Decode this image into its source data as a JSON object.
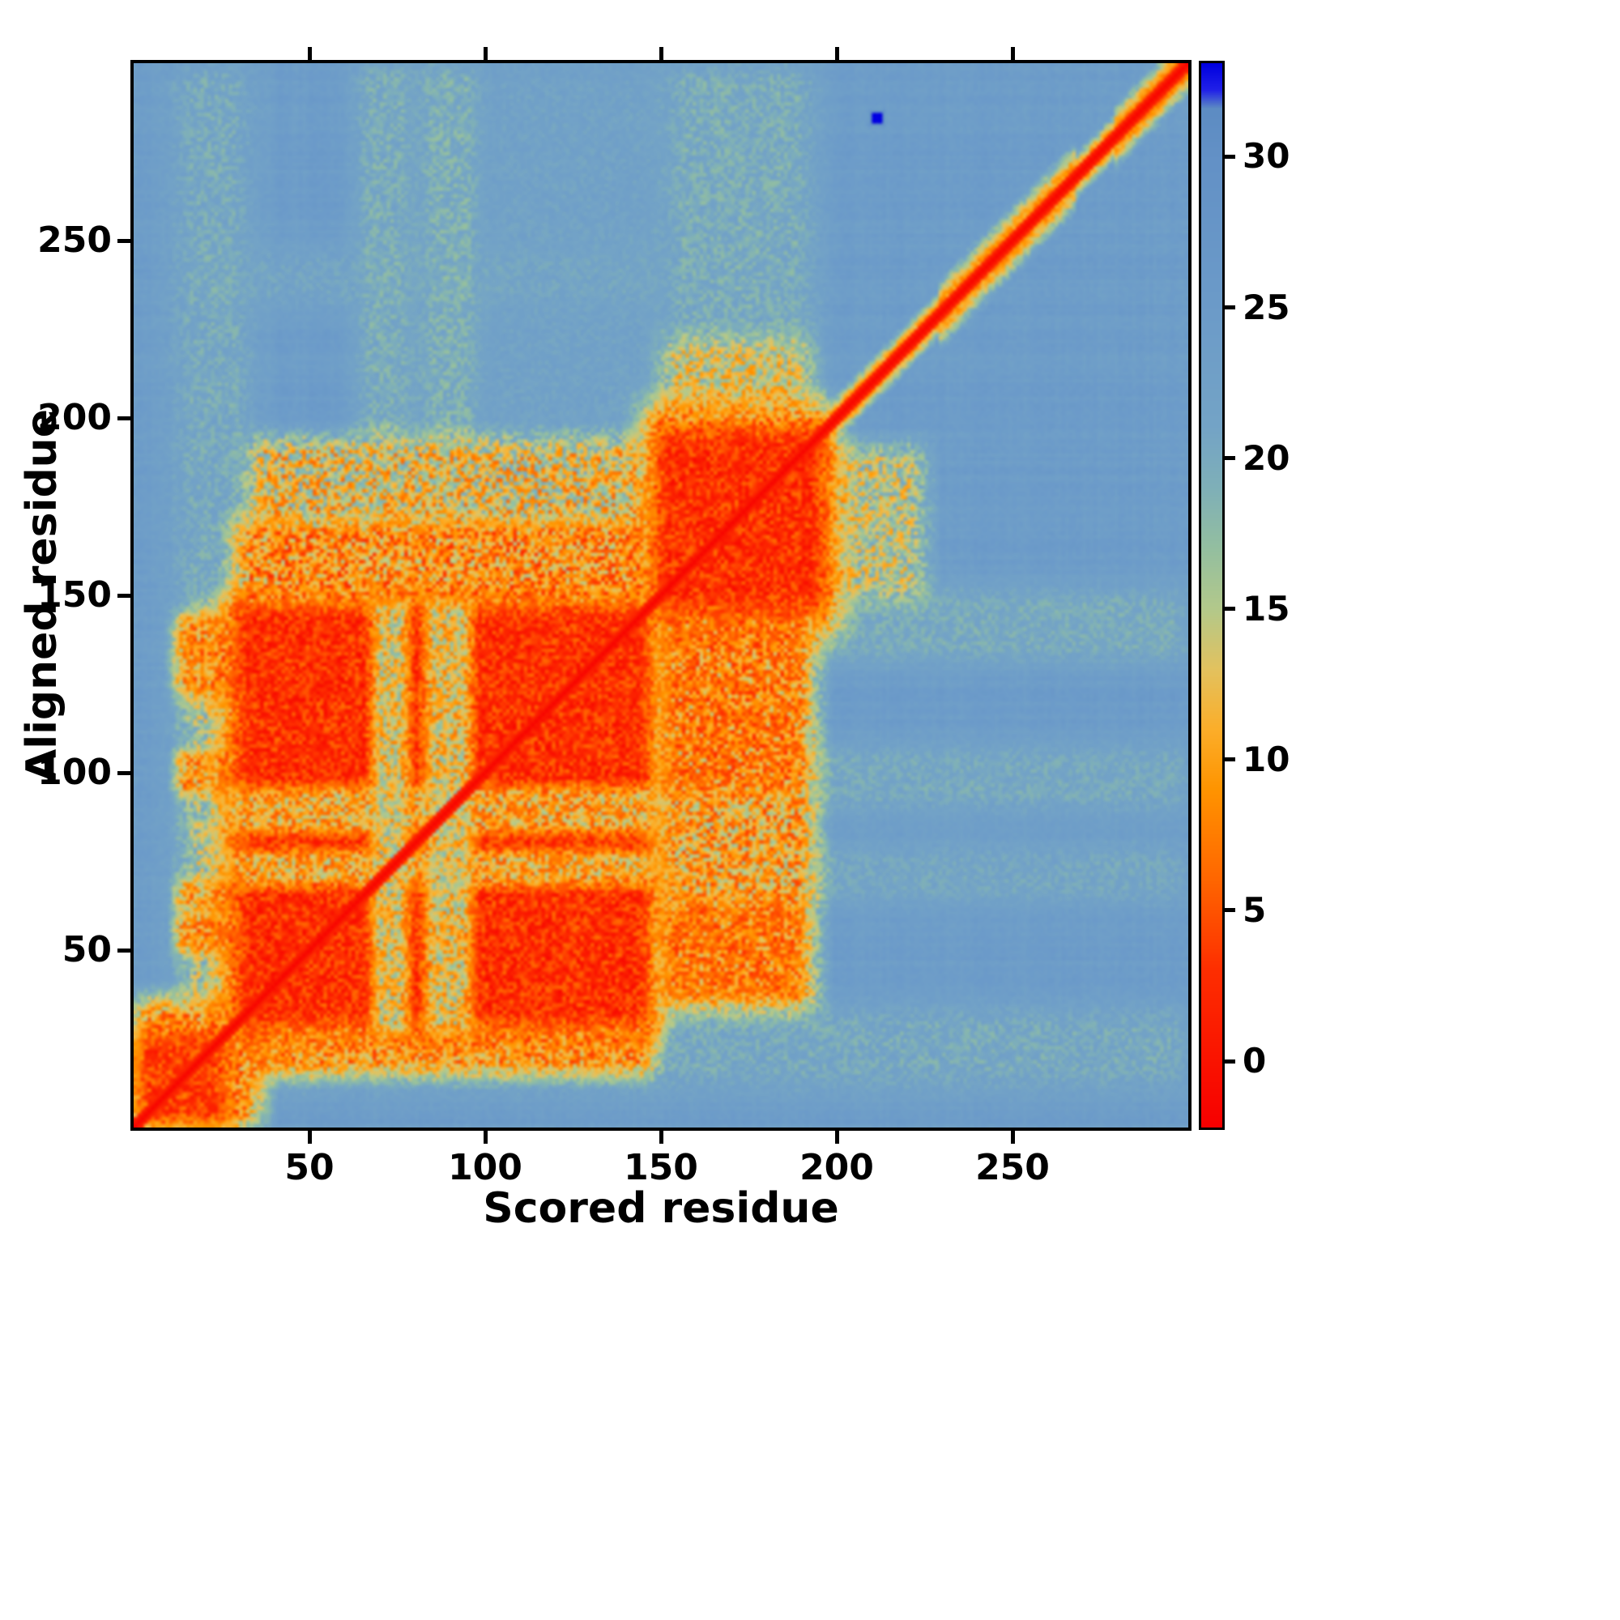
{
  "chart_data": {
    "type": "heatmap",
    "title": "",
    "xlabel": "Scored residue",
    "ylabel": "Aligned residue",
    "x_range": [
      0,
      300
    ],
    "y_range": [
      0,
      300
    ],
    "x_ticks": [
      50,
      100,
      150,
      200,
      250
    ],
    "y_ticks": [
      50,
      100,
      150,
      200,
      250
    ],
    "grid_size": 300,
    "seed": 7,
    "colorbar": {
      "ticks": [
        0,
        5,
        10,
        15,
        20,
        25,
        30
      ]
    },
    "colormap": [
      [
        -2.2,
        "#f70000"
      ],
      [
        3,
        "#fe2e00"
      ],
      [
        6,
        "#ff6600"
      ],
      [
        9,
        "#ff9400"
      ],
      [
        11,
        "#fcae2a"
      ],
      [
        13,
        "#e3c25f"
      ],
      [
        15,
        "#b3c98b"
      ],
      [
        17,
        "#94bfa0"
      ],
      [
        19,
        "#7fb0b8"
      ],
      [
        21,
        "#74a4c6"
      ],
      [
        25,
        "#6c9bc9"
      ],
      [
        30,
        "#6391c6"
      ],
      [
        31.6,
        "#5d8cc3"
      ],
      [
        32.2,
        "#2222e8"
      ],
      [
        33.1,
        "#0000e0"
      ]
    ],
    "background": {
      "value": 24.2,
      "row_noise": 1.0,
      "col_noise": 0.7,
      "cell_noise": 0.9
    },
    "regions": [
      {
        "x": [
          1,
          300
        ],
        "y": [
          12,
          34
        ],
        "v": 20.5,
        "soft": 8,
        "noise": 1.5
      },
      {
        "x": [
          12,
          34
        ],
        "y": [
          1,
          300
        ],
        "v": 20.5,
        "soft": 8,
        "noise": 1.5
      },
      {
        "x": [
          64,
          80
        ],
        "y": [
          140,
          300
        ],
        "v": 20.0,
        "soft": 6,
        "noise": 1.5
      },
      {
        "x": [
          82,
          99
        ],
        "y": [
          140,
          300
        ],
        "v": 19.5,
        "soft": 6,
        "noise": 1.5
      },
      {
        "x": [
          140,
          300
        ],
        "y": [
          64,
          80
        ],
        "v": 21.0,
        "soft": 6,
        "noise": 1.2
      },
      {
        "x": [
          190,
          300
        ],
        "y": [
          90,
          108
        ],
        "v": 20.5,
        "soft": 6,
        "noise": 1.2
      },
      {
        "x": [
          190,
          300
        ],
        "y": [
          132,
          152
        ],
        "v": 20.0,
        "soft": 6,
        "noise": 1.2
      },
      {
        "x": [
          20,
          150
        ],
        "y": [
          232,
          248
        ],
        "v": 21.5,
        "soft": 6,
        "noise": 1.2
      },
      {
        "x": [
          100,
          150
        ],
        "y": [
          195,
          300
        ],
        "v": 22.0,
        "soft": 10,
        "noise": 1.0
      },
      {
        "x": [
          152,
          194
        ],
        "y": [
          195,
          300
        ],
        "v": 20.0,
        "soft": 8,
        "noise": 1.5
      },
      {
        "x": [
          195,
          225
        ],
        "y": [
          150,
          192
        ],
        "v": 15.0,
        "soft": 6,
        "noise": 3.0
      },
      {
        "x": [
          152,
          192
        ],
        "y": [
          196,
          222
        ],
        "v": 14.0,
        "soft": 6,
        "noise": 3.0
      },
      {
        "x": [
          16,
          34
        ],
        "y": [
          36,
          148
        ],
        "v": 16.0,
        "soft": 5,
        "noise": 3.0
      },
      {
        "x": [
          13,
          32
        ],
        "y": [
          50,
          60
        ],
        "v": 9.0,
        "soft": 3,
        "noise": 3.0
      },
      {
        "x": [
          13,
          32
        ],
        "y": [
          62,
          70
        ],
        "v": 10.0,
        "soft": 3,
        "noise": 3.0
      },
      {
        "x": [
          13,
          32
        ],
        "y": [
          95,
          106
        ],
        "v": 9.5,
        "soft": 3,
        "noise": 3.0
      },
      {
        "x": [
          13,
          32
        ],
        "y": [
          122,
          144
        ],
        "v": 9.0,
        "soft": 4,
        "noise": 3.0
      },
      {
        "x": [
          30,
          148
        ],
        "y": [
          16,
          32
        ],
        "v": 9.0,
        "soft": 5,
        "noise": 3.0
      },
      {
        "x": [
          30,
          148
        ],
        "y": [
          146,
          172
        ],
        "v": 9.0,
        "soft": 6,
        "noise": 3.5
      },
      {
        "x": [
          34,
          148
        ],
        "y": [
          170,
          194
        ],
        "v": 13.0,
        "soft": 6,
        "noise": 4.0
      },
      {
        "x": [
          150,
          194
        ],
        "y": [
          34,
          152
        ],
        "v": 10.5,
        "soft": 6,
        "noise": 3.5
      },
      {
        "x": [
          152,
          190
        ],
        "y": [
          38,
          64
        ],
        "v": 8.5,
        "soft": 4,
        "noise": 3.0
      },
      {
        "x": [
          152,
          190
        ],
        "y": [
          96,
          150
        ],
        "v": 9.0,
        "soft": 4,
        "noise": 3.5
      },
      {
        "x": [
          1,
          36
        ],
        "y": [
          1,
          36
        ],
        "v": 9.0,
        "soft": 6,
        "noise": 3.0
      },
      {
        "x": [
          2,
          26
        ],
        "y": [
          2,
          26
        ],
        "v": 4.0,
        "soft": 5,
        "noise": 2.0
      },
      {
        "x": [
          26,
          150
        ],
        "y": [
          26,
          150
        ],
        "v": 7.5,
        "soft": 5,
        "noise": 2.5
      },
      {
        "x": [
          31,
          146
        ],
        "y": [
          31,
          146
        ],
        "v": 2.8,
        "soft": 3,
        "noise": 2.0
      },
      {
        "x": [
          69,
          78
        ],
        "y": [
          28,
          148
        ],
        "v": 13.0,
        "soft": 3,
        "noise": 3.0,
        "mode": "max"
      },
      {
        "x": [
          84,
          96
        ],
        "y": [
          28,
          148
        ],
        "v": 12.5,
        "soft": 3,
        "noise": 3.0,
        "mode": "max"
      },
      {
        "x": [
          28,
          148
        ],
        "y": [
          69,
          78
        ],
        "v": 10.5,
        "soft": 3,
        "noise": 3.0,
        "mode": "max"
      },
      {
        "x": [
          28,
          148
        ],
        "y": [
          84,
          96
        ],
        "v": 10.5,
        "soft": 3,
        "noise": 3.0,
        "mode": "max"
      },
      {
        "x": [
          146,
          200
        ],
        "y": [
          140,
          204
        ],
        "v": 8.5,
        "soft": 7,
        "noise": 3.0
      },
      {
        "x": [
          150,
          196
        ],
        "y": [
          148,
          196
        ],
        "v": 2.8,
        "soft": 5,
        "noise": 2.0
      },
      {
        "x": [
          210,
          214
        ],
        "y": [
          283,
          287
        ],
        "v": 33.0,
        "soft": 1,
        "noise": 0,
        "mode": "set"
      }
    ],
    "diagonal": {
      "core_value": -1.8,
      "core_halfwidth": 1.6,
      "fade_to": 24.5,
      "halo": [
        {
          "range": [
            1,
            195
          ],
          "halfwidth": 3.5,
          "value": 5.5
        },
        {
          "range": [
            195,
            300
          ],
          "halfwidth": 7.5,
          "value": 5.5
        },
        {
          "range": [
            230,
            268
          ],
          "halfwidth": 11,
          "value": 6.0
        },
        {
          "range": [
            280,
            300
          ],
          "halfwidth": 10,
          "value": 5.0
        },
        {
          "range": [
            288,
            300
          ],
          "halfwidth": 7,
          "value": 2.0
        }
      ]
    }
  }
}
